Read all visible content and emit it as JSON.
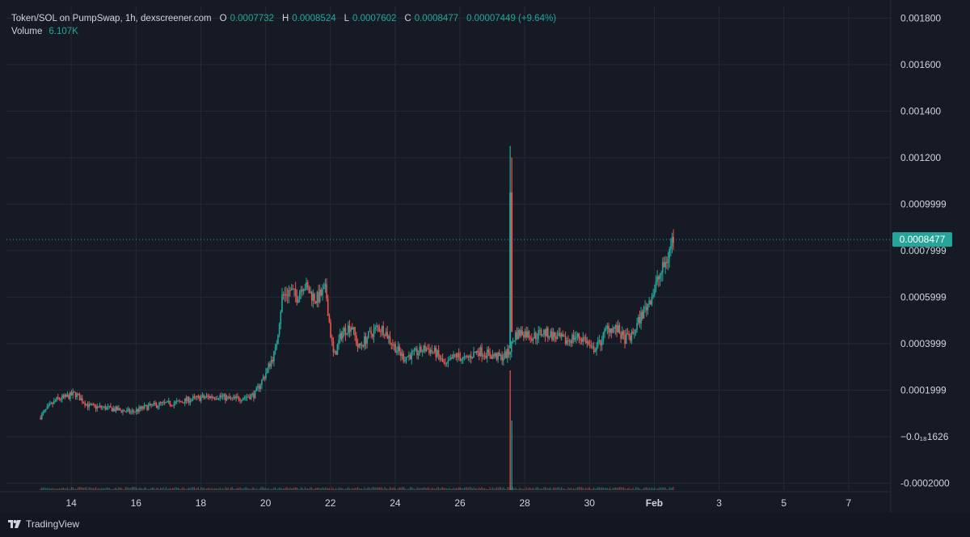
{
  "legend": {
    "title": "Token/SOL on PumpSwap, 1h, dexscreener.com",
    "o_label": "O",
    "o_value": "0.0007732",
    "h_label": "H",
    "h_value": "0.0008524",
    "l_label": "L",
    "l_value": "0.0007602",
    "c_label": "C",
    "c_value": "0.0008477",
    "change": "0.00007449 (+9.64%)",
    "volume_label": "Volume",
    "volume_value": "6.107K"
  },
  "brand": {
    "name": "TradingView",
    "icon": "tradingview-logo-icon"
  },
  "colors": {
    "background": "#161a25",
    "grid": "#262a35",
    "text": "#d1d4dc",
    "up": "#26a69a",
    "down": "#ef5350",
    "price_line": "#26a69a"
  },
  "chart_data": {
    "type": "candlestick",
    "timeframe": "1h",
    "ylim": [
      -0.00023,
      0.00185
    ],
    "y_ticks": [
      {
        "value": 0.0018,
        "label": "0.001800"
      },
      {
        "value": 0.0016,
        "label": "0.001600"
      },
      {
        "value": 0.0014,
        "label": "0.001400"
      },
      {
        "value": 0.0012,
        "label": "0.001200"
      },
      {
        "value": 0.001,
        "label": "0.0009999"
      },
      {
        "value": 0.0008,
        "label": "0.0007999"
      },
      {
        "value": 0.0006,
        "label": "0.0005999"
      },
      {
        "value": 0.0004,
        "label": "0.0003999"
      },
      {
        "value": 0.0002,
        "label": "0.0001999"
      },
      {
        "value": 0.0,
        "label": "−0.0₁₈1626"
      },
      {
        "value": -0.0002,
        "label": "-0.0002000"
      }
    ],
    "x_ticks": [
      {
        "day": 14,
        "label": "14",
        "bold": false
      },
      {
        "day": 16,
        "label": "16",
        "bold": false
      },
      {
        "day": 18,
        "label": "18",
        "bold": false
      },
      {
        "day": 20,
        "label": "20",
        "bold": false
      },
      {
        "day": 22,
        "label": "22",
        "bold": false
      },
      {
        "day": 24,
        "label": "24",
        "bold": false
      },
      {
        "day": 26,
        "label": "26",
        "bold": false
      },
      {
        "day": 28,
        "label": "28",
        "bold": false
      },
      {
        "day": 30,
        "label": "30",
        "bold": false
      },
      {
        "day": 32,
        "label": "Feb",
        "bold": true
      },
      {
        "day": 34,
        "label": "3",
        "bold": false
      },
      {
        "day": 36,
        "label": "5",
        "bold": false
      },
      {
        "day": 38,
        "label": "7",
        "bold": false
      }
    ],
    "x_range_days": [
      12.0,
      39.3
    ],
    "last_price": {
      "value": 0.0008477,
      "label": "0.0008477"
    },
    "price_path": [
      [
        13.05,
        8e-05
      ],
      [
        13.3,
        0.00012
      ],
      [
        13.6,
        0.00016
      ],
      [
        13.9,
        0.00017
      ],
      [
        14.15,
        0.000185
      ],
      [
        14.35,
        0.00016
      ],
      [
        14.6,
        0.00013
      ],
      [
        15.0,
        0.000125
      ],
      [
        15.5,
        0.000115
      ],
      [
        15.9,
        0.000105
      ],
      [
        16.3,
        0.000125
      ],
      [
        16.8,
        0.00014
      ],
      [
        17.3,
        0.000145
      ],
      [
        17.7,
        0.00016
      ],
      [
        18.2,
        0.00017
      ],
      [
        18.6,
        0.000175
      ],
      [
        19.0,
        0.00016
      ],
      [
        19.4,
        0.00017
      ],
      [
        19.7,
        0.00018
      ],
      [
        20.0,
        0.00026
      ],
      [
        20.35,
        0.00037
      ],
      [
        20.55,
        0.0006
      ],
      [
        20.8,
        0.00063
      ],
      [
        21.0,
        0.0006
      ],
      [
        21.2,
        0.00066
      ],
      [
        21.4,
        0.00062
      ],
      [
        21.6,
        0.00059
      ],
      [
        21.9,
        0.00063
      ],
      [
        22.05,
        0.00044
      ],
      [
        22.15,
        0.00034
      ],
      [
        22.4,
        0.00045
      ],
      [
        22.7,
        0.00048
      ],
      [
        22.9,
        0.00038
      ],
      [
        23.2,
        0.00043
      ],
      [
        23.5,
        0.00047
      ],
      [
        23.7,
        0.00046
      ],
      [
        23.95,
        0.0004
      ],
      [
        24.3,
        0.00034
      ],
      [
        24.7,
        0.00036
      ],
      [
        25.0,
        0.00038
      ],
      [
        25.3,
        0.00036
      ],
      [
        25.6,
        0.0003
      ],
      [
        25.9,
        0.00035
      ],
      [
        26.2,
        0.00033
      ],
      [
        26.6,
        0.00037
      ],
      [
        27.0,
        0.00035
      ],
      [
        27.3,
        0.00034
      ],
      [
        27.55,
        0.00036
      ],
      [
        27.75,
        0.00044
      ],
      [
        28.0,
        0.00045
      ],
      [
        28.3,
        0.00043
      ],
      [
        28.6,
        0.00045
      ],
      [
        29.0,
        0.00043
      ],
      [
        29.3,
        0.00041
      ],
      [
        29.6,
        0.00043
      ],
      [
        29.9,
        0.00042
      ],
      [
        30.1,
        0.00037
      ],
      [
        30.35,
        0.0004
      ],
      [
        30.6,
        0.00047
      ],
      [
        30.9,
        0.00046
      ],
      [
        31.1,
        0.00042
      ],
      [
        31.35,
        0.00043
      ],
      [
        31.6,
        0.00051
      ],
      [
        31.8,
        0.00056
      ],
      [
        32.0,
        0.00062
      ],
      [
        32.2,
        0.00069
      ],
      [
        32.4,
        0.00075
      ],
      [
        32.55,
        0.00082
      ],
      [
        32.6,
        0.00085
      ]
    ],
    "spikes": [
      {
        "day": 27.55,
        "high": 0.00125,
        "open": 0.00038,
        "close": 0.00105
      },
      {
        "day": 27.6,
        "high": 0.0012,
        "open": 0.00105,
        "close": 0.00045
      }
    ],
    "volume_spike_day": 27.55
  }
}
